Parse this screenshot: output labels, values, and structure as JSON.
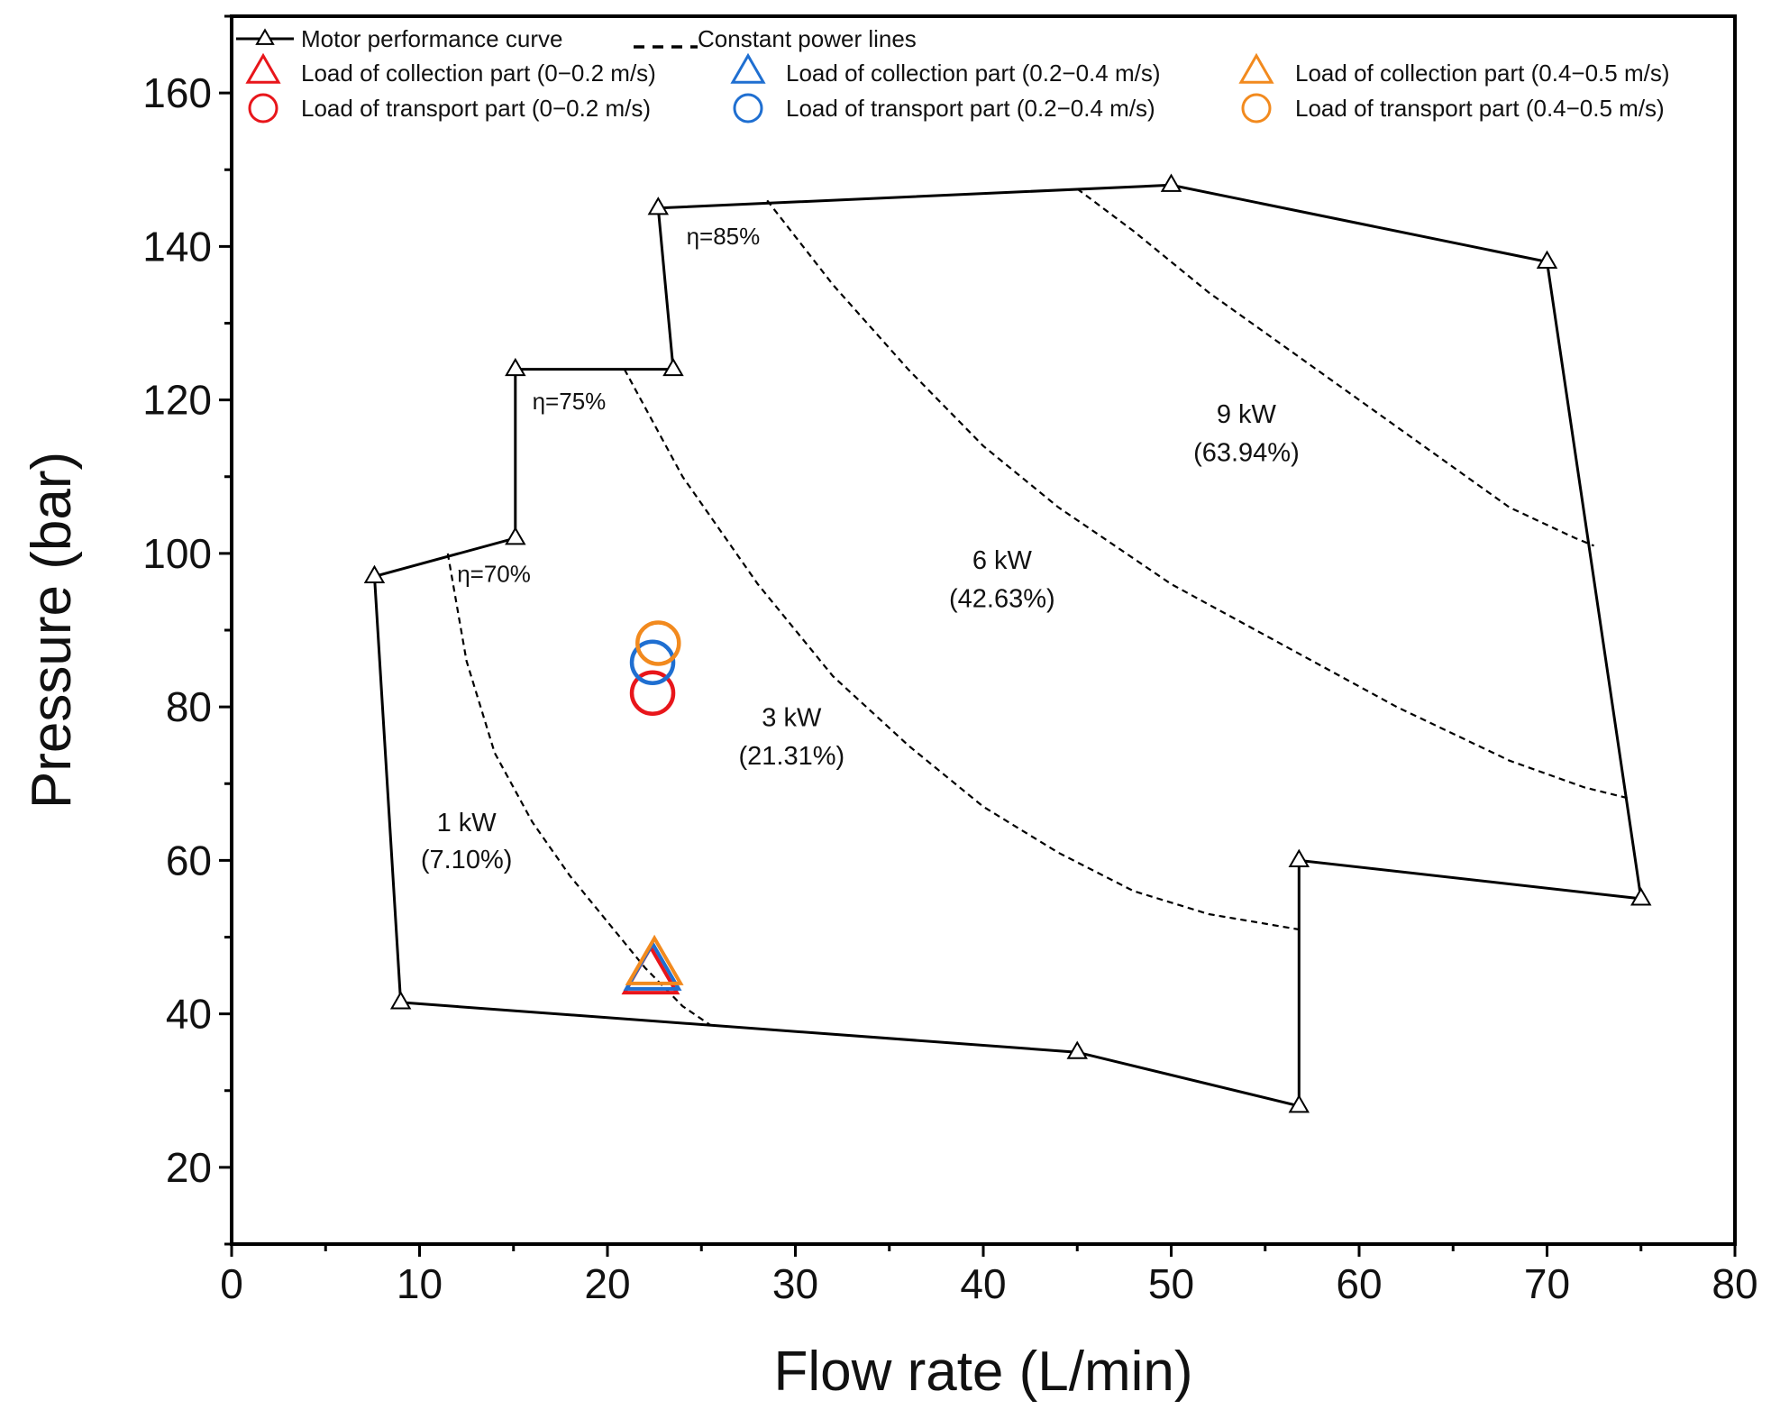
{
  "chart_data": {
    "type": "scatter",
    "title": "",
    "xlabel": "Flow rate (L/min)",
    "ylabel": "Pressure (bar)",
    "xlim": [
      0,
      80
    ],
    "ylim": [
      10,
      170
    ],
    "xticks": [
      0,
      10,
      20,
      30,
      40,
      50,
      60,
      70,
      80
    ],
    "yticks": [
      20,
      40,
      60,
      80,
      100,
      120,
      140,
      160
    ],
    "grid": false,
    "legend_position": "top",
    "motor_curve": {
      "name": "Motor performance curve",
      "points": [
        [
          9,
          41.5
        ],
        [
          7.6,
          97
        ],
        [
          15.1,
          102
        ],
        [
          15.1,
          124
        ],
        [
          23.5,
          124
        ],
        [
          22.7,
          145
        ],
        [
          50,
          148
        ],
        [
          70,
          138
        ],
        [
          75,
          55
        ],
        [
          56.8,
          60
        ],
        [
          56.8,
          28
        ],
        [
          45,
          35
        ],
        [
          9,
          41.5
        ]
      ]
    },
    "constant_power_lines": {
      "name": "Constant power lines",
      "lines": [
        {
          "label": "1 kW",
          "sub": "(7.10%)",
          "points": [
            [
              11.5,
              100
            ],
            [
              12.5,
              86
            ],
            [
              14,
              74
            ],
            [
              16,
              65
            ],
            [
              18,
              58
            ],
            [
              20,
              52
            ],
            [
              22,
              46
            ],
            [
              24,
              41
            ],
            [
              25.5,
              38.5
            ]
          ]
        },
        {
          "label": "3 kW",
          "sub": "(21.31%)",
          "points": [
            [
              20.9,
              124
            ],
            [
              24,
              110
            ],
            [
              28,
              96
            ],
            [
              32,
              84
            ],
            [
              36,
              75
            ],
            [
              40,
              67
            ],
            [
              44,
              61
            ],
            [
              48,
              56
            ],
            [
              52,
              53
            ],
            [
              56.8,
              51
            ]
          ]
        },
        {
          "label": "6 kW",
          "sub": "(42.63%)",
          "points": [
            [
              28.5,
              146
            ],
            [
              32,
              135
            ],
            [
              36,
              124
            ],
            [
              40,
              114
            ],
            [
              44,
              106
            ],
            [
              50,
              96
            ],
            [
              56,
              88
            ],
            [
              62,
              80
            ],
            [
              68,
              73
            ],
            [
              72,
              69.5
            ],
            [
              74.5,
              68
            ]
          ]
        },
        {
          "label": "9 kW",
          "sub": "(63.94%)",
          "points": [
            [
              45,
              147.5
            ],
            [
              48,
              142
            ],
            [
              52,
              134
            ],
            [
              56,
              127
            ],
            [
              60,
              120
            ],
            [
              64,
              113
            ],
            [
              68,
              106
            ],
            [
              71.5,
              102
            ],
            [
              72.5,
              101
            ]
          ]
        }
      ]
    },
    "efficiency_labels": [
      "η=70%",
      "η=75%",
      "η=85%"
    ],
    "load_points": [
      {
        "name": "Load of collection part (0−0.2 m/s)",
        "marker": "triangle",
        "color": "#e8161b",
        "x": 22.3,
        "y": 45
      },
      {
        "name": "Load of collection part (0.2−0.4 m/s)",
        "marker": "triangle",
        "color": "#1f6fd1",
        "x": 22.4,
        "y": 45.5
      },
      {
        "name": "Load of collection part (0.4−0.5 m/s)",
        "marker": "triangle",
        "color": "#f28a1e",
        "x": 22.5,
        "y": 46.2
      },
      {
        "name": "Load of transport part (0−0.2 m/s)",
        "marker": "circle",
        "color": "#e8161b",
        "x": 22.4,
        "y": 81.8
      },
      {
        "name": "Load of transport part (0.2−0.4 m/s)",
        "marker": "circle",
        "color": "#1f6fd1",
        "x": 22.4,
        "y": 85.8
      },
      {
        "name": "Load of transport part (0.4−0.5 m/s)",
        "marker": "circle",
        "color": "#f28a1e",
        "x": 22.7,
        "y": 88.3
      }
    ]
  }
}
